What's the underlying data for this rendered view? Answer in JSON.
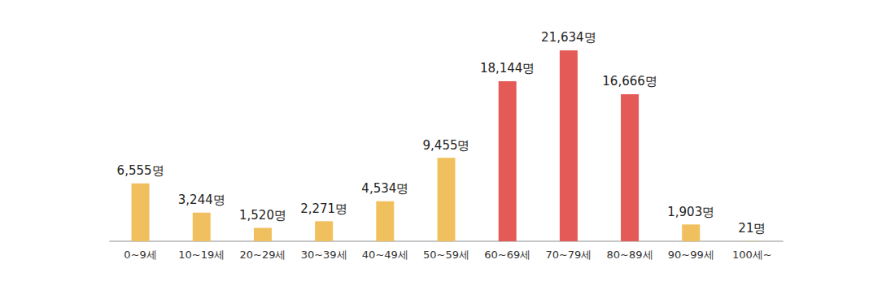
{
  "chart_data": {
    "type": "bar",
    "categories": [
      "0~9세",
      "10~19세",
      "20~29세",
      "30~39세",
      "40~49세",
      "50~59세",
      "60~69세",
      "70~79세",
      "80~89세",
      "90~99세",
      "100세~"
    ],
    "values": [
      6555,
      3244,
      1520,
      2271,
      4534,
      9455,
      18144,
      21634,
      16666,
      1903,
      21
    ],
    "value_labels": [
      "6,555명",
      "3,244명",
      "1,520명",
      "2,271명",
      "4,534명",
      "9,455명",
      "18,144명",
      "21,634명",
      "16,666명",
      "1,903명",
      "21명"
    ],
    "colors": [
      "#f0c05e",
      "#f0c05e",
      "#f0c05e",
      "#f0c05e",
      "#f0c05e",
      "#f0c05e",
      "#e45a56",
      "#e45a56",
      "#e45a56",
      "#f0c05e",
      "#f0c05e"
    ],
    "ylim": [
      0,
      22000
    ],
    "data_labels": true,
    "tick_labels": "x",
    "grid": false
  }
}
